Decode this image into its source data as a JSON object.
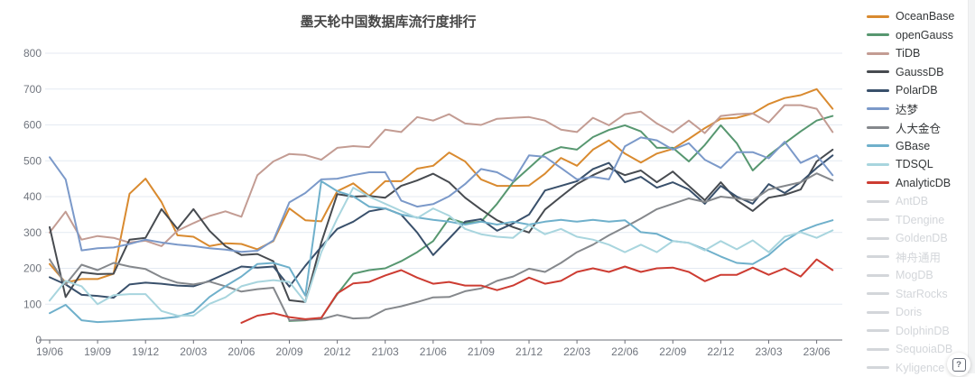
{
  "chart_data": {
    "type": "line",
    "title": "墨天轮中国数据库流行度排行",
    "xlabel": "",
    "ylabel": "",
    "ylim": [
      0,
      800
    ],
    "y_ticks": [
      0,
      100,
      200,
      300,
      400,
      500,
      600,
      700,
      800
    ],
    "grid": true,
    "legend_position": "right",
    "x": [
      "19/06",
      "19/07",
      "19/08",
      "19/09",
      "19/10",
      "19/11",
      "19/12",
      "20/01",
      "20/02",
      "20/03",
      "20/04",
      "20/05",
      "20/06",
      "20/07",
      "20/08",
      "20/09",
      "20/10",
      "20/11",
      "20/12",
      "21/01",
      "21/02",
      "21/03",
      "21/04",
      "21/05",
      "21/06",
      "21/07",
      "21/08",
      "21/09",
      "21/10",
      "21/11",
      "21/12",
      "22/01",
      "22/02",
      "22/03",
      "22/04",
      "22/05",
      "22/06",
      "22/07",
      "22/08",
      "22/09",
      "22/10",
      "22/11",
      "22/12",
      "23/01",
      "23/02",
      "23/03",
      "23/04",
      "23/05",
      "23/06",
      "23/07"
    ],
    "x_tick_labels": [
      "19/06",
      "19/09",
      "19/12",
      "20/03",
      "20/06",
      "20/09",
      "20/12",
      "21/03",
      "21/06",
      "21/09",
      "21/12",
      "22/03",
      "22/06",
      "22/09",
      "22/12",
      "23/03",
      "23/06"
    ],
    "series": [
      {
        "name": "OceanBase",
        "color": "#d98a2f",
        "values": [
          212,
          160,
          170,
          170,
          185,
          408,
          450,
          385,
          292,
          288,
          262,
          270,
          268,
          253,
          276,
          367,
          334,
          331,
          415,
          437,
          402,
          443,
          443,
          478,
          486,
          523,
          498,
          448,
          430,
          430,
          431,
          464,
          508,
          486,
          531,
          557,
          520,
          495,
          520,
          533,
          561,
          591,
          617,
          620,
          632,
          658,
          675,
          683,
          700,
          645
        ]
      },
      {
        "name": "openGauss",
        "color": "#579770",
        "values": [
          null,
          null,
          null,
          null,
          null,
          null,
          null,
          null,
          null,
          null,
          null,
          null,
          null,
          null,
          null,
          53,
          55,
          62,
          128,
          185,
          195,
          200,
          220,
          245,
          276,
          339,
          326,
          330,
          380,
          440,
          480,
          520,
          538,
          531,
          566,
          586,
          599,
          582,
          536,
          536,
          498,
          544,
          599,
          549,
          473,
          515,
          549,
          582,
          612,
          625
        ]
      },
      {
        "name": "TiDB",
        "color": "#c39c93",
        "values": [
          300,
          358,
          280,
          290,
          285,
          272,
          277,
          262,
          305,
          326,
          346,
          359,
          344,
          460,
          498,
          519,
          516,
          503,
          536,
          541,
          538,
          587,
          580,
          622,
          612,
          630,
          604,
          600,
          617,
          620,
          622,
          612,
          587,
          580,
          620,
          599,
          630,
          637,
          604,
          579,
          612,
          577,
          625,
          630,
          632,
          607,
          655,
          655,
          645,
          580
        ]
      },
      {
        "name": "GaussDB",
        "color": "#474b50",
        "values": [
          315,
          120,
          189,
          184,
          185,
          280,
          285,
          365,
          310,
          365,
          305,
          262,
          237,
          240,
          220,
          111,
          106,
          272,
          407,
          400,
          402,
          397,
          430,
          445,
          464,
          440,
          397,
          364,
          334,
          315,
          300,
          364,
          400,
          435,
          460,
          480,
          460,
          473,
          440,
          470,
          430,
          390,
          440,
          390,
          360,
          397,
          405,
          420,
          498,
          531
        ]
      },
      {
        "name": "PolarDB",
        "color": "#39506b",
        "values": [
          175,
          155,
          126,
          123,
          118,
          155,
          160,
          157,
          152,
          150,
          165,
          185,
          205,
          202,
          205,
          149,
          207,
          260,
          310,
          330,
          359,
          367,
          350,
          300,
          237,
          283,
          330,
          337,
          305,
          325,
          350,
          417,
          430,
          443,
          477,
          494,
          440,
          455,
          425,
          440,
          420,
          380,
          430,
          400,
          380,
          435,
          410,
          440,
          480,
          515
        ]
      },
      {
        "name": "达梦",
        "color": "#7b99c9",
        "values": [
          510,
          448,
          250,
          256,
          258,
          268,
          280,
          272,
          266,
          262,
          256,
          252,
          246,
          249,
          278,
          384,
          410,
          448,
          450,
          460,
          468,
          468,
          389,
          372,
          379,
          401,
          435,
          477,
          468,
          443,
          515,
          511,
          480,
          448,
          455,
          448,
          540,
          565,
          557,
          531,
          549,
          503,
          480,
          524,
          524,
          507,
          553,
          494,
          515,
          460
        ]
      },
      {
        "name": "人大金仓",
        "color": "#85888c",
        "values": [
          225,
          155,
          210,
          195,
          215,
          205,
          198,
          175,
          160,
          155,
          163,
          150,
          135,
          142,
          146,
          55,
          56,
          58,
          70,
          60,
          62,
          85,
          94,
          106,
          119,
          120,
          136,
          144,
          165,
          177,
          199,
          190,
          215,
          245,
          266,
          292,
          315,
          339,
          365,
          380,
          395,
          385,
          400,
          395,
          390,
          420,
          430,
          440,
          465,
          445
        ]
      },
      {
        "name": "GBase",
        "color": "#6fb0cb",
        "values": [
          75,
          98,
          55,
          50,
          52,
          55,
          58,
          60,
          65,
          78,
          120,
          150,
          177,
          212,
          215,
          202,
          124,
          443,
          415,
          401,
          372,
          367,
          350,
          342,
          335,
          330,
          322,
          330,
          322,
          330,
          322,
          330,
          335,
          330,
          335,
          330,
          334,
          301,
          296,
          276,
          271,
          253,
          233,
          215,
          212,
          237,
          276,
          304,
          321,
          334
        ]
      },
      {
        "name": "TDSQL",
        "color": "#a8d5de",
        "values": [
          110,
          165,
          150,
          100,
          125,
          128,
          128,
          81,
          68,
          68,
          101,
          119,
          150,
          162,
          167,
          162,
          106,
          245,
          339,
          425,
          400,
          380,
          360,
          340,
          367,
          347,
          310,
          295,
          288,
          285,
          321,
          295,
          310,
          288,
          280,
          266,
          245,
          266,
          245,
          276,
          271,
          250,
          276,
          253,
          278,
          245,
          288,
          301,
          285,
          306
        ]
      },
      {
        "name": "AnalyticDB",
        "color": "#cd3c32",
        "values": [
          null,
          null,
          null,
          null,
          null,
          null,
          null,
          null,
          null,
          null,
          null,
          null,
          48,
          68,
          75,
          64,
          58,
          62,
          130,
          158,
          162,
          180,
          195,
          174,
          157,
          162,
          152,
          152,
          139,
          152,
          174,
          157,
          165,
          190,
          200,
          190,
          205,
          190,
          200,
          202,
          190,
          164,
          182,
          182,
          202,
          182,
          200,
          177,
          225,
          195
        ]
      }
    ]
  },
  "legend": {
    "items": [
      {
        "label": "OceanBase",
        "color": "#d98a2f",
        "active": true
      },
      {
        "label": "openGauss",
        "color": "#579770",
        "active": true
      },
      {
        "label": "TiDB",
        "color": "#c39c93",
        "active": true
      },
      {
        "label": "GaussDB",
        "color": "#474b50",
        "active": true
      },
      {
        "label": "PolarDB",
        "color": "#39506b",
        "active": true
      },
      {
        "label": "达梦",
        "color": "#7b99c9",
        "active": true
      },
      {
        "label": "人大金仓",
        "color": "#85888c",
        "active": true
      },
      {
        "label": "GBase",
        "color": "#6fb0cb",
        "active": true
      },
      {
        "label": "TDSQL",
        "color": "#a8d5de",
        "active": true
      },
      {
        "label": "AnalyticDB",
        "color": "#cd3c32",
        "active": true
      },
      {
        "label": "AntDB",
        "color": "#d3d6da",
        "active": false
      },
      {
        "label": "TDengine",
        "color": "#d3d6da",
        "active": false
      },
      {
        "label": "GoldenDB",
        "color": "#d3d6da",
        "active": false
      },
      {
        "label": "神舟通用",
        "color": "#d3d6da",
        "active": false
      },
      {
        "label": "MogDB",
        "color": "#d3d6da",
        "active": false
      },
      {
        "label": "StarRocks",
        "color": "#d3d6da",
        "active": false
      },
      {
        "label": "Doris",
        "color": "#d3d6da",
        "active": false
      },
      {
        "label": "DolphinDB",
        "color": "#d3d6da",
        "active": false
      },
      {
        "label": "SequoiaDB",
        "color": "#d3d6da",
        "active": false
      },
      {
        "label": "Kyligence",
        "color": "#d3d6da",
        "active": false
      }
    ]
  },
  "help": {
    "label": "?"
  },
  "colors": {
    "grid_line": "#e4eaf2",
    "axis_line": "#6e7079",
    "axis_label": "#70757e",
    "title_text": "#464646"
  }
}
